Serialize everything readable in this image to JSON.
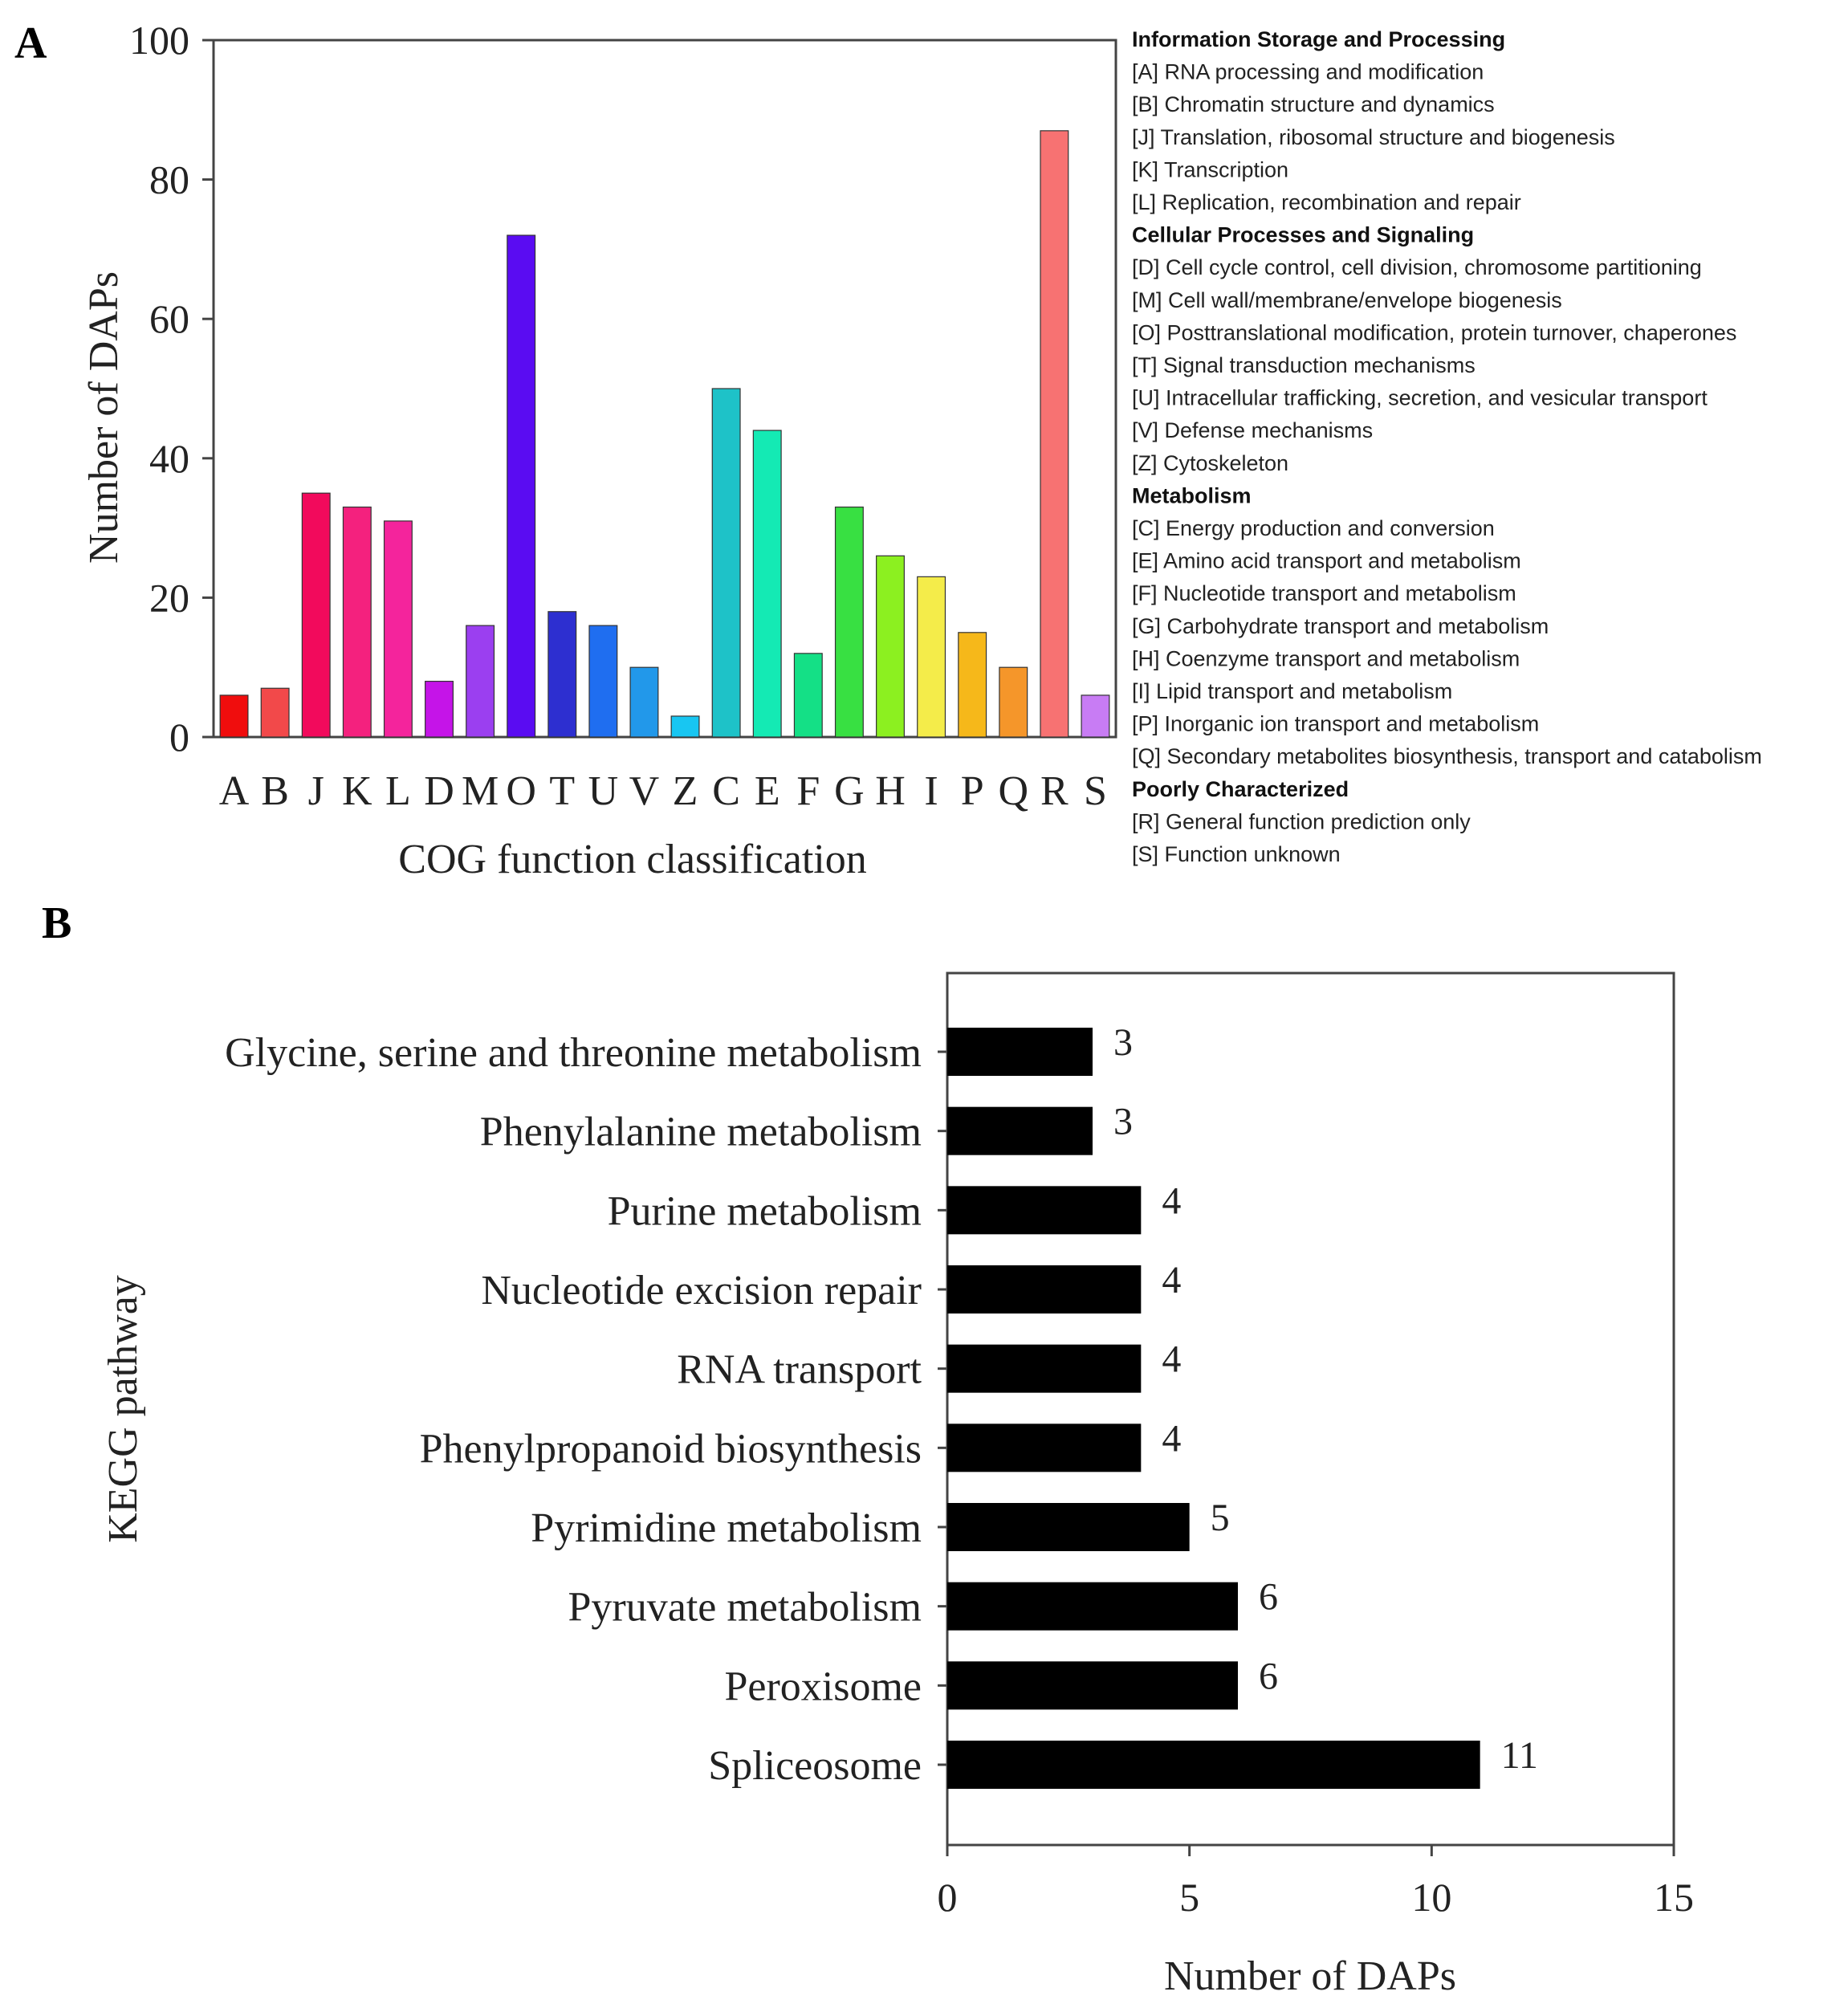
{
  "panels": {
    "a_letter": "A",
    "b_letter": "B"
  },
  "chart_data": [
    {
      "type": "bar",
      "title": "",
      "xlabel": "COG function classification",
      "ylabel": "Number of DAPs",
      "ylim": [
        0,
        100
      ],
      "yticks": [
        0,
        20,
        40,
        60,
        80,
        100
      ],
      "grid": false,
      "categories": [
        "A",
        "B",
        "J",
        "K",
        "L",
        "D",
        "M",
        "O",
        "T",
        "U",
        "V",
        "Z",
        "C",
        "E",
        "F",
        "G",
        "H",
        "I",
        "P",
        "Q",
        "R",
        "S"
      ],
      "values": [
        6,
        7,
        35,
        33,
        31,
        8,
        16,
        72,
        18,
        16,
        10,
        3,
        50,
        44,
        12,
        33,
        26,
        23,
        15,
        10,
        87,
        6
      ],
      "colors": [
        "#f00d0d",
        "#f2494a",
        "#f20a5c",
        "#f4217e",
        "#f4249c",
        "#c514e8",
        "#9b3ff0",
        "#5a0cf2",
        "#2d2fd0",
        "#1f6ef0",
        "#2298ea",
        "#18c6f2",
        "#1ec2c8",
        "#14eab4",
        "#14e086",
        "#38e042",
        "#8cf020",
        "#f4ec4a",
        "#f6b81a",
        "#f5962a",
        "#f77272",
        "#c87cf4"
      ],
      "legend": [
        {
          "group": "Information Storage and Processing",
          "items": [
            "[A] RNA processing and modification",
            "[B] Chromatin structure and dynamics",
            "[J] Translation, ribosomal structure and biogenesis",
            "[K] Transcription",
            "[L] Replication, recombination and repair"
          ]
        },
        {
          "group": "Cellular Processes and Signaling",
          "items": [
            "[D] Cell cycle control, cell division, chromosome partitioning",
            "[M] Cell wall/membrane/envelope biogenesis",
            "[O] Posttranslational modification, protein turnover, chaperones",
            "[T] Signal transduction mechanisms",
            "[U] Intracellular trafficking, secretion, and vesicular transport",
            "[V] Defense mechanisms",
            "[Z] Cytoskeleton"
          ]
        },
        {
          "group": "Metabolism",
          "items": [
            "[C] Energy production and conversion",
            "[E] Amino acid transport and metabolism",
            "[F] Nucleotide transport and metabolism",
            "[G] Carbohydrate transport and metabolism",
            "[H] Coenzyme transport and metabolism",
            "[I] Lipid transport and metabolism",
            "[P] Inorganic ion transport and metabolism",
            "[Q] Secondary metabolites biosynthesis, transport and catabolism"
          ]
        },
        {
          "group": "Poorly Characterized",
          "items": [
            "[R] General function prediction only",
            "[S] Function unknown"
          ]
        }
      ]
    },
    {
      "type": "bar",
      "orientation": "horizontal",
      "title": "",
      "xlabel": "Number of DAPs",
      "ylabel": "KEGG pathway",
      "xlim": [
        0,
        15
      ],
      "xticks": [
        0,
        5,
        10,
        15
      ],
      "grid": false,
      "bar_color": "#000000",
      "categories": [
        "Glycine, serine and threonine metabolism",
        "Phenylalanine metabolism",
        "Purine metabolism",
        "Nucleotide excision repair",
        "RNA transport",
        "Phenylpropanoid biosynthesis",
        "Pyrimidine metabolism",
        "Pyruvate metabolism",
        "Peroxisome",
        "Spliceosome"
      ],
      "values": [
        3,
        3,
        4,
        4,
        4,
        4,
        5,
        6,
        6,
        11
      ]
    }
  ]
}
